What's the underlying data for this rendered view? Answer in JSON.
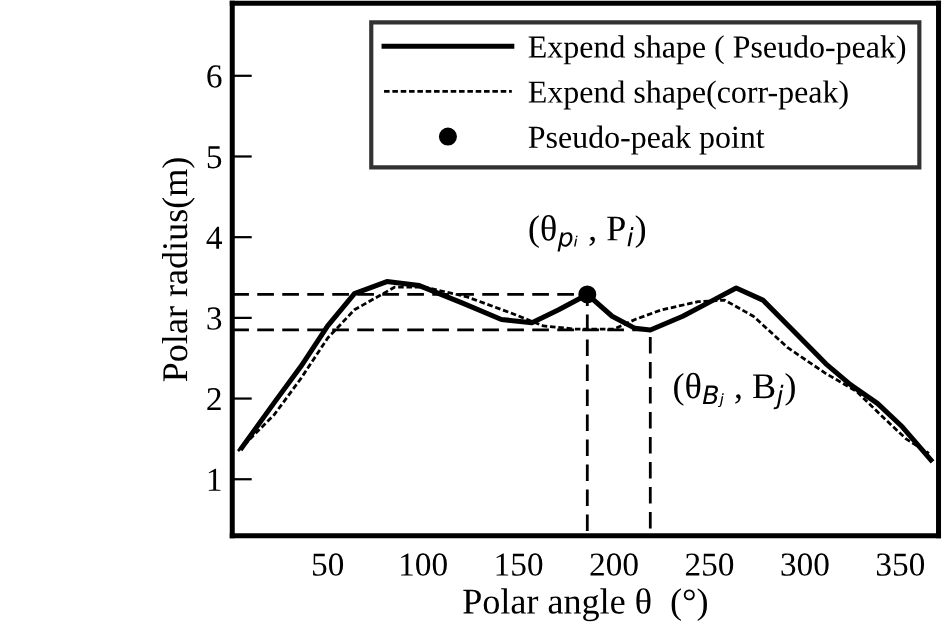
{
  "chart_data": {
    "type": "line",
    "xlabel": "Polar angle θ  (°)",
    "ylabel": "Polar radius(m)",
    "xlim": [
      0,
      370
    ],
    "xticks": [
      50,
      100,
      150,
      200,
      250,
      300,
      350
    ],
    "ylim": [
      0.3,
      6.9
    ],
    "yticks": [
      1,
      2,
      3,
      4,
      5,
      6
    ],
    "grid": false,
    "legend": "top right",
    "series": [
      {
        "name": "Expend shape ( Pseudo-peak)",
        "color": "#000000",
        "line_style": "solid",
        "x": [
          5,
          22,
          36,
          50,
          64,
          81,
          98,
          121,
          141,
          157,
          171,
          186,
          199,
          211,
          219,
          236,
          252,
          264,
          278,
          296,
          311,
          324,
          338,
          351,
          366
        ],
        "values": [
          1.39,
          1.95,
          2.4,
          2.9,
          3.3,
          3.45,
          3.4,
          3.18,
          2.98,
          2.94,
          3.1,
          3.29,
          3.02,
          2.87,
          2.85,
          3.02,
          3.22,
          3.37,
          3.22,
          2.79,
          2.43,
          2.17,
          1.94,
          1.65,
          1.24
        ]
      },
      {
        "name": "Expend shape(corr-peak)",
        "color": "#000000",
        "line_style": "dotted",
        "x": [
          3,
          22,
          36,
          50,
          64,
          85,
          101,
          123,
          146,
          163,
          180,
          200,
          211,
          225,
          244,
          258,
          273,
          291,
          311,
          327,
          340,
          353,
          365
        ],
        "values": [
          1.35,
          1.8,
          2.25,
          2.75,
          3.1,
          3.38,
          3.38,
          3.26,
          3.06,
          2.9,
          2.86,
          2.86,
          2.98,
          3.1,
          3.2,
          3.22,
          3.02,
          2.63,
          2.31,
          2.09,
          1.79,
          1.5,
          1.32
        ]
      },
      {
        "name": "Pseudo-peak point",
        "type": "scatter",
        "color": "#000000",
        "marker": "circle",
        "x": [
          186
        ],
        "values": [
          3.29
        ]
      },
      {
        "color": "#000000",
        "line_style": "dashed",
        "x": [
          0,
          186,
          186
        ],
        "values": [
          3.29,
          3.29,
          0.3
        ]
      },
      {
        "color": "#000000",
        "line_style": "dashed",
        "x": [
          0,
          219,
          219
        ],
        "values": [
          2.85,
          2.85,
          0.3
        ]
      }
    ],
    "annotations": [
      {
        "text": "(θ$_{pᵢ}$ , P$_{i}$)",
        "x": 186,
        "y": 3.29
      },
      {
        "text": "(θ$_{Bⱼ}$ , B$_{j}$)",
        "x": 219,
        "y": 2.85
      }
    ]
  }
}
